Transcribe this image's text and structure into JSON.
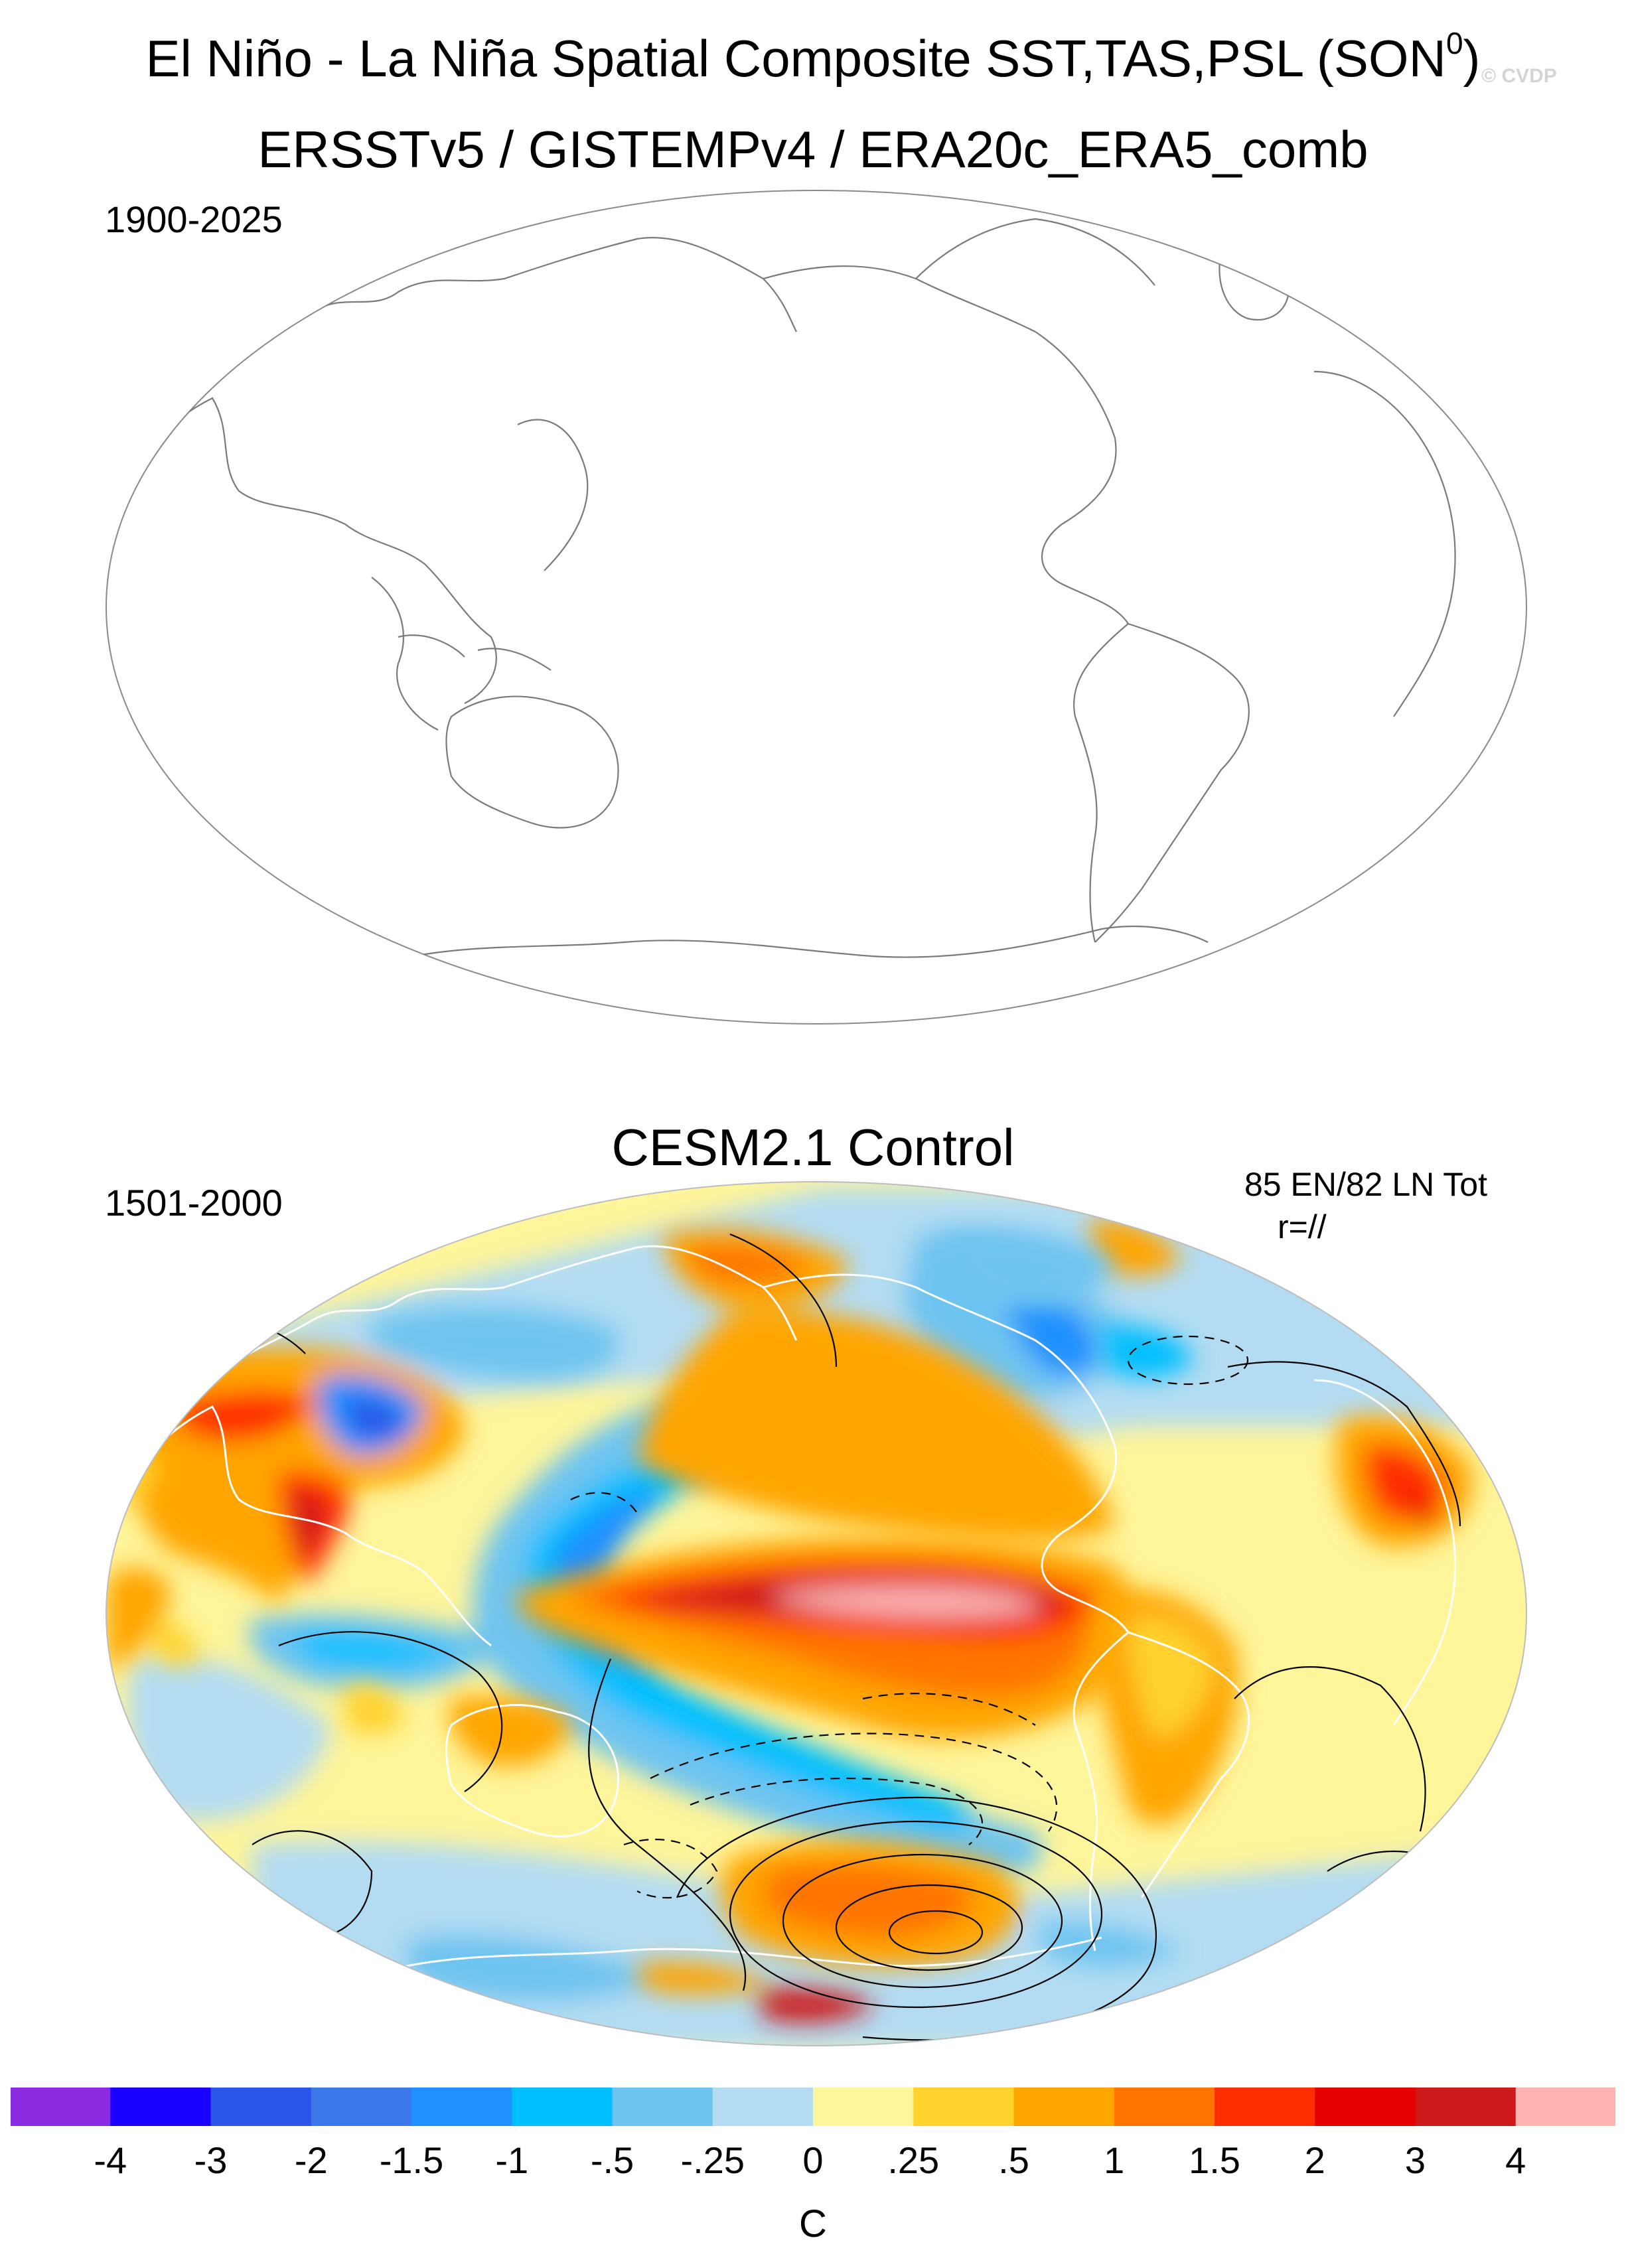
{
  "title": {
    "main": "El Niño - La Niña Spatial Composite SST,TAS,PSL (SON",
    "superscript": "0",
    "close": ")",
    "watermark": "© CVDP"
  },
  "panels": [
    {
      "name": "observations",
      "subtitle": "ERSSTv5 / GISTEMPv4 / ERA20c_ERA5_comb",
      "period": "1900-2025",
      "field": "empty"
    },
    {
      "name": "model",
      "subtitle": "CESM2.1 Control",
      "period": "1501-2000",
      "event_count": "85 EN/82 LN Tot",
      "r_label": "r=//"
    }
  ],
  "colorbar": {
    "unit": "C",
    "tick_labels": [
      "-4",
      "-3",
      "-2",
      "-1.5",
      "-1",
      "-.5",
      "-.25",
      "0",
      ".25",
      ".5",
      "1",
      "1.5",
      "2",
      "3",
      "4"
    ],
    "colors": [
      "#8a2be2",
      "#1a00ff",
      "#2b55e6",
      "#3b78ea",
      "#1e90ff",
      "#00bfff",
      "#6ec4f0",
      "#b3dcf2",
      "#fff59a",
      "#ffd22e",
      "#ffa500",
      "#ff7500",
      "#ff2e00",
      "#e60000",
      "#cc1a1a",
      "#ffb3b3"
    ]
  },
  "colors": {
    "land_outline": "#7a7a7a",
    "map_border": "#8a8a8a",
    "psl_contour": "#000000"
  }
}
